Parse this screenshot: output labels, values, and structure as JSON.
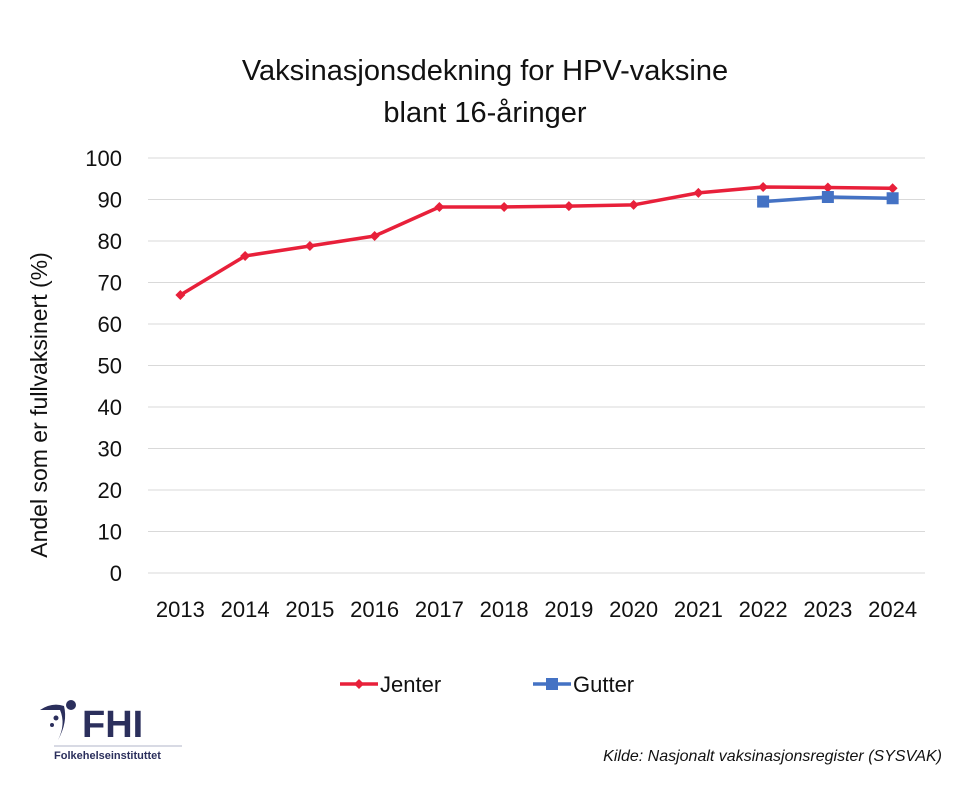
{
  "chart_data": {
    "type": "line",
    "title": [
      "Vaksinasjonsdekning for HPV-vaksine",
      "blant 16-åringer"
    ],
    "xlabel": "",
    "ylabel": "Andel som er fullvaksinert (%)",
    "ylim": [
      0,
      100
    ],
    "yticks": [
      0,
      10,
      20,
      30,
      40,
      50,
      60,
      70,
      80,
      90,
      100
    ],
    "categories": [
      "2013",
      "2014",
      "2015",
      "2016",
      "2017",
      "2018",
      "2019",
      "2020",
      "2021",
      "2022",
      "2023",
      "2024"
    ],
    "grid": "horizontal",
    "legend_position": "bottom",
    "series": [
      {
        "name": "Jenter",
        "color": "#e8203a",
        "marker": "diamond",
        "values": [
          67.0,
          76.4,
          78.8,
          81.2,
          88.2,
          88.2,
          88.4,
          88.7,
          91.6,
          93.0,
          92.9,
          92.7
        ]
      },
      {
        "name": "Gutter",
        "color": "#4472c4",
        "marker": "square",
        "values": [
          null,
          null,
          null,
          null,
          null,
          null,
          null,
          null,
          null,
          89.5,
          90.6,
          90.3
        ]
      }
    ]
  },
  "source": "Kilde: Nasjonalt vaksinasjonsregister (SYSVAK)",
  "logo": {
    "name": "FHI",
    "subtitle": "Folkehelseinstituttet",
    "color": "#2b2f5c"
  }
}
